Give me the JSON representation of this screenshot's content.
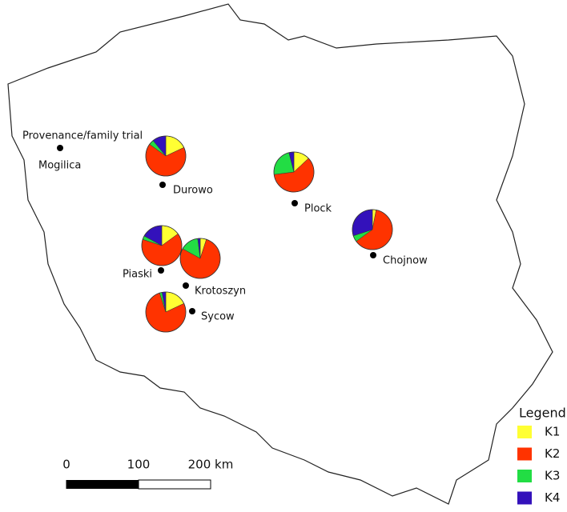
{
  "map": {
    "trial_label": "Provenance/family trial",
    "trial_site": "Mogilica",
    "groups": [
      {
        "name": "K1",
        "color": "#ffff33"
      },
      {
        "name": "K2",
        "color": "#ff3300"
      },
      {
        "name": "K3",
        "color": "#22dd44"
      },
      {
        "name": "K4",
        "color": "#3311bb"
      }
    ],
    "sites": [
      {
        "name": "Durowo",
        "values": [
          18,
          67,
          4,
          11
        ]
      },
      {
        "name": "Plock",
        "values": [
          13,
          60,
          23,
          4
        ]
      },
      {
        "name": "Chojnow",
        "values": [
          3,
          62,
          5,
          30
        ]
      },
      {
        "name": "Piaski",
        "values": [
          15,
          65,
          3,
          17
        ]
      },
      {
        "name": "Krotoszyn",
        "values": [
          5,
          78,
          15,
          2
        ]
      },
      {
        "name": "Sycow",
        "values": [
          18,
          77,
          2,
          3
        ]
      }
    ],
    "legend_title": "Legend",
    "scale": {
      "lim": [
        0,
        200
      ],
      "ticks": [
        0,
        100,
        {
          "value": 200,
          "label": "200 km"
        }
      ]
    }
  }
}
